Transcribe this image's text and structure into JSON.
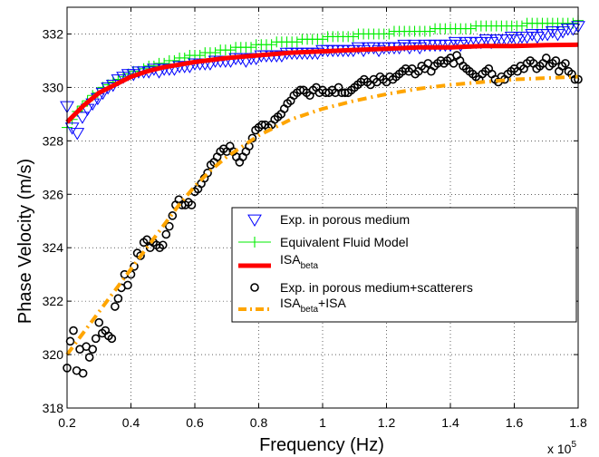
{
  "chart_data": {
    "type": "scatter",
    "title": "",
    "xlabel": "Frequency (Hz)",
    "ylabel": "Phase Velocity (m/s)",
    "x_multiplier_label": "x 10",
    "x_multiplier_exp": "5",
    "xlim": [
      0.2,
      1.8
    ],
    "ylim": [
      318,
      333
    ],
    "x_ticks": [
      0.2,
      0.4,
      0.6,
      0.8,
      1.0,
      1.2,
      1.4,
      1.6,
      1.8
    ],
    "x_tick_labels": [
      "0.2",
      "0.4",
      "0.6",
      "0.8",
      "1",
      "1.2",
      "1.4",
      "1.6",
      "1.8"
    ],
    "y_ticks": [
      318,
      320,
      322,
      324,
      326,
      328,
      330,
      332
    ],
    "y_tick_labels": [
      "318",
      "320",
      "322",
      "324",
      "326",
      "328",
      "330",
      "332"
    ],
    "grid": true,
    "legend_placement": "center-right",
    "series": [
      {
        "name": "Exp. in porous medium",
        "marker": "triangle-down",
        "color": "#0000ff",
        "x": [
          0.2,
          0.216,
          0.232,
          0.248,
          0.264,
          0.28,
          0.296,
          0.312,
          0.328,
          0.344,
          0.36,
          0.376,
          0.392,
          0.408,
          0.424,
          0.44,
          0.456,
          0.472,
          0.488,
          0.504,
          0.52,
          0.536,
          0.552,
          0.568,
          0.584,
          0.6,
          0.616,
          0.632,
          0.648,
          0.664,
          0.68,
          0.696,
          0.712,
          0.728,
          0.744,
          0.76,
          0.776,
          0.792,
          0.808,
          0.824,
          0.84,
          0.856,
          0.872,
          0.888,
          0.904,
          0.92,
          0.936,
          0.952,
          0.968,
          0.984,
          1.0,
          1.016,
          1.032,
          1.048,
          1.064,
          1.08,
          1.096,
          1.112,
          1.128,
          1.144,
          1.16,
          1.176,
          1.192,
          1.208,
          1.224,
          1.24,
          1.256,
          1.272,
          1.288,
          1.304,
          1.32,
          1.336,
          1.352,
          1.368,
          1.384,
          1.4,
          1.416,
          1.432,
          1.448,
          1.464,
          1.48,
          1.496,
          1.512,
          1.528,
          1.544,
          1.56,
          1.576,
          1.592,
          1.608,
          1.624,
          1.64,
          1.656,
          1.672,
          1.688,
          1.704,
          1.72,
          1.736,
          1.752,
          1.768,
          1.784,
          1.8
        ],
        "y": [
          329.3,
          328.5,
          328.3,
          328.9,
          329.2,
          329.4,
          329.6,
          329.8,
          330.0,
          330.1,
          330.3,
          330.4,
          330.5,
          330.5,
          330.6,
          330.6,
          330.6,
          330.7,
          330.6,
          330.7,
          330.7,
          330.7,
          330.8,
          330.8,
          330.8,
          330.9,
          330.9,
          330.9,
          330.9,
          331.0,
          331.0,
          331.0,
          331.0,
          331.1,
          331.1,
          331.0,
          331.1,
          331.1,
          331.2,
          331.2,
          331.2,
          331.2,
          331.2,
          331.3,
          331.3,
          331.3,
          331.3,
          331.3,
          331.3,
          331.3,
          331.4,
          331.4,
          331.4,
          331.4,
          331.4,
          331.4,
          331.4,
          331.5,
          331.4,
          331.5,
          331.5,
          331.4,
          331.5,
          331.5,
          331.5,
          331.5,
          331.6,
          331.5,
          331.6,
          331.5,
          331.6,
          331.6,
          331.6,
          331.6,
          331.6,
          331.6,
          331.7,
          331.6,
          331.7,
          331.7,
          331.7,
          331.7,
          331.8,
          331.7,
          331.8,
          331.8,
          331.8,
          331.9,
          331.8,
          331.9,
          331.9,
          332.0,
          331.9,
          332.0,
          332.0,
          332.1,
          332.0,
          332.1,
          332.2,
          332.2,
          332.3
        ]
      },
      {
        "name": "Equivalent Fluid Model",
        "marker": "plus",
        "color": "#00ee00",
        "x": [
          0.2,
          0.216,
          0.232,
          0.248,
          0.264,
          0.28,
          0.296,
          0.312,
          0.328,
          0.344,
          0.36,
          0.376,
          0.392,
          0.408,
          0.424,
          0.44,
          0.456,
          0.472,
          0.488,
          0.504,
          0.52,
          0.536,
          0.552,
          0.568,
          0.584,
          0.6,
          0.616,
          0.632,
          0.648,
          0.664,
          0.68,
          0.696,
          0.712,
          0.728,
          0.744,
          0.76,
          0.776,
          0.792,
          0.808,
          0.824,
          0.84,
          0.856,
          0.872,
          0.888,
          0.904,
          0.92,
          0.936,
          0.952,
          0.968,
          0.984,
          1.0,
          1.016,
          1.032,
          1.048,
          1.064,
          1.08,
          1.096,
          1.112,
          1.128,
          1.144,
          1.16,
          1.176,
          1.192,
          1.208,
          1.224,
          1.24,
          1.256,
          1.272,
          1.288,
          1.304,
          1.32,
          1.336,
          1.352,
          1.368,
          1.384,
          1.4,
          1.416,
          1.432,
          1.448,
          1.464,
          1.48,
          1.496,
          1.512,
          1.528,
          1.544,
          1.56,
          1.576,
          1.592,
          1.608,
          1.624,
          1.64,
          1.656,
          1.672,
          1.688,
          1.704,
          1.72,
          1.736,
          1.752,
          1.768,
          1.784,
          1.8
        ],
        "y": [
          328.5,
          328.8,
          329.1,
          329.3,
          329.5,
          329.7,
          329.8,
          330.0,
          330.1,
          330.2,
          330.3,
          330.4,
          330.5,
          330.6,
          330.6,
          330.7,
          330.8,
          330.8,
          330.9,
          330.9,
          331.0,
          331.0,
          331.1,
          331.1,
          331.2,
          331.2,
          331.2,
          331.3,
          331.3,
          331.3,
          331.4,
          331.4,
          331.4,
          331.5,
          331.5,
          331.5,
          331.5,
          331.6,
          331.6,
          331.6,
          331.6,
          331.7,
          331.7,
          331.7,
          331.7,
          331.7,
          331.8,
          331.8,
          331.8,
          331.8,
          331.8,
          331.9,
          331.9,
          331.9,
          331.9,
          331.9,
          331.9,
          332.0,
          332.0,
          332.0,
          332.0,
          332.0,
          332.0,
          332.0,
          332.1,
          332.1,
          332.1,
          332.1,
          332.1,
          332.1,
          332.1,
          332.1,
          332.2,
          332.2,
          332.2,
          332.2,
          332.2,
          332.2,
          332.2,
          332.2,
          332.3,
          332.3,
          332.3,
          332.3,
          332.3,
          332.3,
          332.3,
          332.3,
          332.3,
          332.3,
          332.4,
          332.4,
          332.4,
          332.4,
          332.4,
          332.4,
          332.4,
          332.4,
          332.4,
          332.4,
          332.5
        ]
      },
      {
        "name": "ISA",
        "name_subscript": "beta",
        "marker": "line",
        "color": "#ff0000",
        "x": [
          0.2,
          0.25,
          0.3,
          0.35,
          0.4,
          0.45,
          0.5,
          0.6,
          0.7,
          0.8,
          0.9,
          1.0,
          1.1,
          1.2,
          1.3,
          1.4,
          1.5,
          1.6,
          1.7,
          1.8
        ],
        "y": [
          328.7,
          329.3,
          329.8,
          330.1,
          330.4,
          330.6,
          330.75,
          330.95,
          331.1,
          331.2,
          331.3,
          331.35,
          331.4,
          331.45,
          331.5,
          331.5,
          331.55,
          331.55,
          331.58,
          331.6
        ]
      },
      {
        "name": "Exp. in porous medium+scatterers",
        "marker": "circle",
        "color": "#000000",
        "x": [
          0.2,
          0.21,
          0.22,
          0.23,
          0.24,
          0.25,
          0.26,
          0.27,
          0.28,
          0.29,
          0.3,
          0.31,
          0.32,
          0.33,
          0.34,
          0.35,
          0.36,
          0.37,
          0.38,
          0.39,
          0.4,
          0.41,
          0.42,
          0.43,
          0.44,
          0.45,
          0.46,
          0.47,
          0.48,
          0.49,
          0.5,
          0.51,
          0.52,
          0.53,
          0.54,
          0.55,
          0.56,
          0.57,
          0.58,
          0.59,
          0.6,
          0.61,
          0.62,
          0.63,
          0.64,
          0.65,
          0.66,
          0.67,
          0.68,
          0.69,
          0.7,
          0.71,
          0.72,
          0.73,
          0.74,
          0.75,
          0.76,
          0.77,
          0.78,
          0.79,
          0.8,
          0.81,
          0.82,
          0.83,
          0.84,
          0.85,
          0.86,
          0.87,
          0.88,
          0.89,
          0.9,
          0.91,
          0.92,
          0.93,
          0.94,
          0.95,
          0.96,
          0.97,
          0.98,
          0.99,
          1.0,
          1.01,
          1.02,
          1.03,
          1.04,
          1.05,
          1.06,
          1.07,
          1.08,
          1.09,
          1.1,
          1.11,
          1.12,
          1.13,
          1.14,
          1.15,
          1.16,
          1.17,
          1.18,
          1.19,
          1.2,
          1.21,
          1.22,
          1.23,
          1.24,
          1.25,
          1.26,
          1.27,
          1.28,
          1.29,
          1.3,
          1.31,
          1.32,
          1.33,
          1.34,
          1.35,
          1.36,
          1.37,
          1.38,
          1.39,
          1.4,
          1.41,
          1.42,
          1.43,
          1.44,
          1.45,
          1.46,
          1.47,
          1.48,
          1.49,
          1.5,
          1.51,
          1.52,
          1.53,
          1.54,
          1.55,
          1.56,
          1.57,
          1.58,
          1.59,
          1.6,
          1.61,
          1.62,
          1.63,
          1.64,
          1.65,
          1.66,
          1.67,
          1.68,
          1.69,
          1.7,
          1.71,
          1.72,
          1.73,
          1.74,
          1.75,
          1.76,
          1.77,
          1.78,
          1.79,
          1.8
        ],
        "y": [
          319.5,
          320.5,
          320.9,
          319.4,
          320.2,
          319.3,
          320.3,
          319.9,
          320.2,
          320.6,
          321.2,
          320.8,
          320.9,
          320.7,
          320.6,
          321.8,
          322.1,
          322.5,
          323.0,
          322.6,
          323.0,
          323.3,
          323.8,
          323.7,
          324.2,
          324.3,
          324.0,
          324.2,
          324.1,
          324.0,
          324.1,
          324.5,
          324.8,
          325.2,
          325.6,
          325.8,
          325.6,
          325.6,
          325.7,
          325.6,
          326.1,
          326.2,
          326.4,
          326.6,
          326.8,
          327.1,
          327.2,
          327.4,
          327.6,
          327.7,
          327.6,
          327.8,
          327.6,
          327.4,
          327.2,
          327.4,
          327.6,
          327.8,
          328.1,
          328.4,
          328.5,
          328.6,
          328.6,
          328.5,
          328.6,
          328.8,
          328.9,
          329.0,
          329.2,
          329.4,
          329.5,
          329.7,
          329.8,
          329.9,
          329.9,
          329.8,
          329.7,
          329.9,
          330.0,
          329.8,
          329.9,
          329.8,
          329.8,
          329.9,
          329.8,
          330.0,
          329.8,
          329.8,
          329.8,
          329.9,
          330.0,
          330.1,
          330.2,
          330.3,
          330.2,
          330.1,
          330.3,
          330.2,
          330.4,
          330.3,
          330.2,
          330.4,
          330.3,
          330.4,
          330.5,
          330.6,
          330.7,
          330.6,
          330.7,
          330.5,
          330.6,
          330.8,
          330.7,
          330.9,
          330.6,
          330.8,
          330.9,
          331.0,
          330.9,
          331.0,
          331.1,
          330.9,
          331.2,
          331.0,
          330.8,
          330.7,
          330.6,
          330.5,
          330.4,
          330.3,
          330.5,
          330.6,
          330.7,
          330.5,
          330.3,
          330.2,
          330.4,
          330.3,
          330.5,
          330.6,
          330.7,
          330.6,
          330.8,
          330.7,
          330.9,
          331.0,
          330.9,
          330.7,
          330.8,
          330.9,
          331.1,
          330.8,
          330.9,
          331.0,
          330.6,
          330.8,
          330.9,
          330.6,
          330.5,
          330.3,
          330.3
        ]
      },
      {
        "name": "ISA",
        "name_subscript": "beta",
        "name_suffix": "+ISA",
        "marker": "dash-dot",
        "color": "#ffa500",
        "x": [
          0.2,
          0.25,
          0.3,
          0.35,
          0.4,
          0.45,
          0.5,
          0.55,
          0.6,
          0.65,
          0.7,
          0.75,
          0.8,
          0.85,
          0.9,
          0.95,
          1.0,
          1.1,
          1.2,
          1.3,
          1.4,
          1.5,
          1.6,
          1.7,
          1.8
        ],
        "y": [
          320.0,
          320.8,
          321.6,
          322.4,
          323.2,
          324.0,
          324.8,
          325.6,
          326.3,
          326.9,
          327.4,
          327.8,
          328.2,
          328.5,
          328.8,
          329.0,
          329.2,
          329.5,
          329.75,
          329.95,
          330.1,
          330.2,
          330.3,
          330.35,
          330.4
        ]
      }
    ]
  }
}
